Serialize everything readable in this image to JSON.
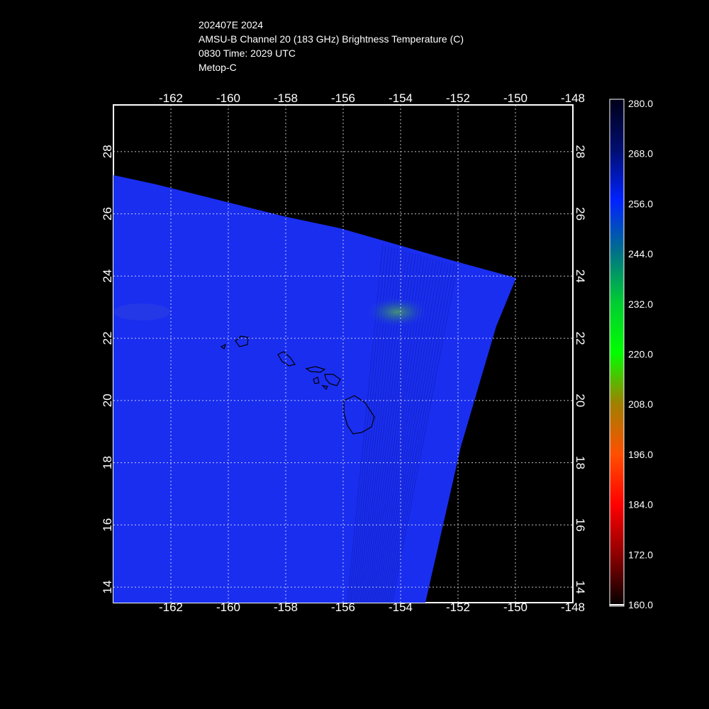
{
  "header": {
    "line1": "202407E 2024",
    "line2": "AMSU-B Channel 20 (183 GHz) Brightness Temperature (C)",
    "line3": "0830 Time: 2029 UTC",
    "line4": "Metop-C"
  },
  "map": {
    "lon_range": [
      -164,
      -148
    ],
    "lat_range": [
      13.5,
      29.5
    ],
    "lon_ticks": [
      "-162",
      "-160",
      "-158",
      "-156",
      "-154",
      "-152",
      "-150",
      "-148"
    ],
    "lat_ticks": [
      "28",
      "26",
      "24",
      "22",
      "20",
      "18",
      "16",
      "14"
    ],
    "swath_color": "#1a2ef0",
    "grid": true
  },
  "colorbar": {
    "labels": [
      "280.0",
      "268.0",
      "256.0",
      "244.0",
      "232.0",
      "220.0",
      "208.0",
      "196.0",
      "184.0",
      "172.0",
      "160.0"
    ],
    "colors": [
      "#000018",
      "#001a9e",
      "#0022ff",
      "#00708a",
      "#00cc33",
      "#00ff00",
      "#a08000",
      "#ff5000",
      "#ff0000",
      "#8c0000",
      "#000000"
    ]
  }
}
